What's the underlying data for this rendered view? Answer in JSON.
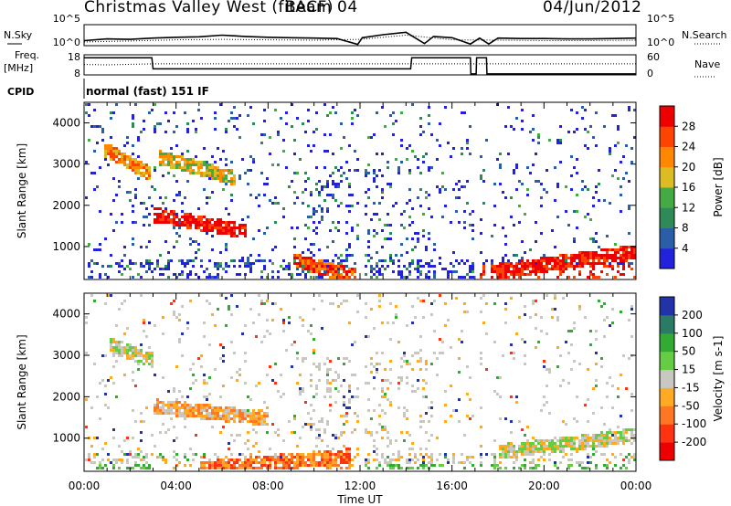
{
  "header": {
    "title": "Christmas Valley West (fitACF)",
    "beam": "Beam 04",
    "date": "04/Jun/2012"
  },
  "colors": {
    "power_scale": [
      "#2222dd",
      "#2a5fa8",
      "#2e8b57",
      "#44aa44",
      "#ddbb22",
      "#ff8800",
      "#ff4400",
      "#ee0000"
    ],
    "velocity_scale": [
      "#2233aa",
      "#2a7a66",
      "#33aa33",
      "#66cc44",
      "#c8c8c0",
      "#ffaa22",
      "#ff7722",
      "#ff3311",
      "#ee0000"
    ],
    "trace": "#000000"
  },
  "chart_data": [
    {
      "panel": "noise",
      "type": "line",
      "left_label": "N.Sky",
      "right_label": "N.Search",
      "left_ticks": [
        "10^5",
        "10^0"
      ],
      "right_ticks": [
        "10^5",
        "10^0"
      ],
      "x_range": [
        0,
        24
      ],
      "series": [
        {
          "line": "solid",
          "x": [
            0,
            1,
            2,
            3,
            4,
            5,
            6,
            7,
            8,
            9,
            10,
            11,
            11.9,
            12.1,
            13,
            14,
            14.8,
            15.2,
            16,
            16.8,
            17.2,
            17.6,
            18,
            19,
            20,
            21,
            22,
            23,
            24
          ],
          "y": [
            1.2,
            1.6,
            1.5,
            1.8,
            2.0,
            2.1,
            2.5,
            2.2,
            2.0,
            1.9,
            1.8,
            1.7,
            0.3,
            1.9,
            2.6,
            3.2,
            0.5,
            2.2,
            1.9,
            0.4,
            1.8,
            0.4,
            1.8,
            1.7,
            1.7,
            1.6,
            1.6,
            1.7,
            1.8
          ]
        },
        {
          "line": "dotted",
          "x": [
            0,
            2,
            4,
            6,
            8,
            10,
            12,
            14,
            16,
            18,
            20,
            22,
            24
          ],
          "y": [
            0.9,
            1.1,
            1.4,
            1.5,
            1.4,
            1.3,
            1.5,
            2.5,
            1.4,
            1.3,
            1.2,
            1.2,
            1.3
          ]
        }
      ]
    },
    {
      "panel": "frequency",
      "type": "line",
      "left_label": "Freq.",
      "left_unit": "[MHz]",
      "right_label": "Nave",
      "left_ticks": [
        "18",
        "8"
      ],
      "right_ticks": [
        "60",
        "0"
      ],
      "x_range": [
        0,
        24
      ],
      "y_range_left": [
        8,
        18
      ],
      "y_range_right": [
        0,
        60
      ],
      "series": [
        {
          "line": "solid",
          "x": [
            0,
            2.95,
            3.0,
            14.2,
            14.25,
            16.8,
            16.82,
            17.05,
            17.07,
            17.5,
            17.52,
            24
          ],
          "y": [
            16.5,
            16.5,
            11.0,
            11.0,
            16.5,
            16.5,
            8.5,
            8.5,
            16.5,
            16.5,
            8.5,
            8.5
          ]
        },
        {
          "line": "dotted",
          "x": [
            0,
            1,
            3,
            24
          ],
          "y": [
            31,
            30,
            33,
            33
          ]
        }
      ]
    },
    {
      "panel": "cpid",
      "label": "CPID",
      "text": "normal (fast) 151 IF"
    },
    {
      "panel": "power",
      "type": "heatmap",
      "ylabel": "Slant Range [km]",
      "colorbar_label": "Power [dB]",
      "colorbar_ticks": [
        "28",
        "24",
        "20",
        "16",
        "12",
        "8",
        "4"
      ],
      "y_ticks": [
        "4000",
        "3000",
        "2000",
        "1000"
      ],
      "x_range": [
        0,
        24
      ],
      "y_range": [
        200,
        4500
      ],
      "features": [
        {
          "t0": 0.8,
          "t1": 2.8,
          "r0": 3400,
          "r1": 2800,
          "level": 5
        },
        {
          "t0": 3.0,
          "t1": 7.0,
          "r0": 1800,
          "r1": 1400,
          "level": 7
        },
        {
          "t0": 3.2,
          "t1": 6.5,
          "r0": 3200,
          "r1": 2700,
          "level": 4
        },
        {
          "t0": 9.0,
          "t1": 11.8,
          "r0": 700,
          "r1": 300,
          "level": 6
        },
        {
          "t0": 17.5,
          "t1": 24.0,
          "r0": 400,
          "r1": 900,
          "level": 7
        }
      ]
    },
    {
      "panel": "velocity",
      "type": "heatmap",
      "ylabel": "Slant Range [km]",
      "colorbar_label": "Velocity [m s-1]",
      "colorbar_ticks": [
        "200",
        "100",
        "50",
        "15",
        "-15",
        "-50",
        "-100",
        "-200"
      ],
      "xlabel": "Time UT",
      "x_ticks": [
        "00:00",
        "04:00",
        "08:00",
        "12:00",
        "16:00",
        "20:00",
        "00:00"
      ],
      "y_ticks": [
        "4000",
        "3000",
        "2000",
        "1000"
      ],
      "x_range": [
        0,
        24
      ],
      "y_range": [
        200,
        4500
      ],
      "features": [
        {
          "t0": 18.0,
          "t1": 24.0,
          "r0": 700,
          "r1": 1100,
          "level": 4
        },
        {
          "t0": 5.0,
          "t1": 11.5,
          "r0": 300,
          "r1": 600,
          "level": 6
        },
        {
          "t0": 3.0,
          "t1": 8.0,
          "r0": 1800,
          "r1": 1500,
          "level": 5
        },
        {
          "t0": 1.0,
          "t1": 3.0,
          "r0": 3300,
          "r1": 2900,
          "level": 4
        }
      ]
    }
  ]
}
